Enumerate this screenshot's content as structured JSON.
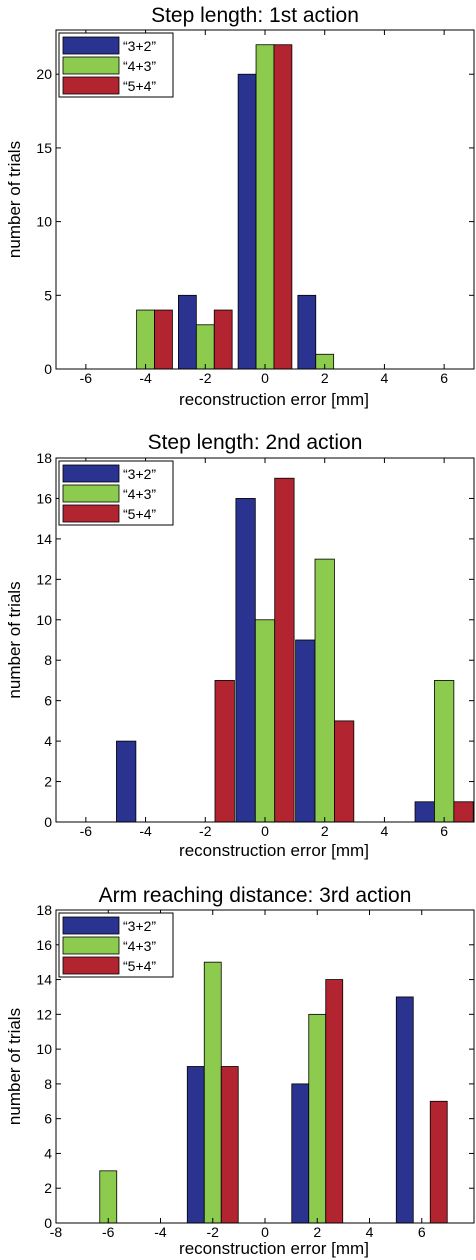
{
  "colors": {
    "series": [
      "#2B3390",
      "#8DCB4E",
      "#B22430"
    ],
    "axis": "#000000",
    "background": "#ffffff"
  },
  "chart_data": [
    {
      "type": "bar",
      "title": "Step length: 1st action",
      "xlabel": "reconstruction error [mm]",
      "ylabel": "number of trials",
      "xlim": [
        -7,
        7
      ],
      "ylim": [
        0,
        23
      ],
      "xticks": [
        -6,
        -4,
        -2,
        0,
        2,
        4,
        6
      ],
      "yticks": [
        0,
        5,
        10,
        15,
        20
      ],
      "grid": false,
      "legend_position": "top-left",
      "bar_group_centers": [
        -4,
        -2,
        0,
        2,
        4
      ],
      "series": [
        {
          "name": "“3+2”",
          "values": [
            0,
            5,
            20,
            5,
            0
          ]
        },
        {
          "name": "“4+3”",
          "values": [
            4,
            3,
            22,
            1,
            0
          ]
        },
        {
          "name": "“5+4”",
          "values": [
            4,
            4,
            22,
            0,
            0
          ]
        }
      ]
    },
    {
      "type": "bar",
      "title": "Step length: 2nd action",
      "xlabel": "reconstruction error [mm]",
      "ylabel": "number of trials",
      "xlim": [
        -7,
        7
      ],
      "ylim": [
        0,
        18
      ],
      "xticks": [
        -6,
        -4,
        -2,
        0,
        2,
        4,
        6
      ],
      "yticks": [
        0,
        2,
        4,
        6,
        8,
        10,
        12,
        14,
        16,
        18
      ],
      "grid": false,
      "legend_position": "top-left",
      "bar_group_centers": [
        -4,
        -2,
        0,
        2,
        4,
        6
      ],
      "series": [
        {
          "name": "“3+2”",
          "values": [
            4,
            0,
            16,
            9,
            0,
            1
          ]
        },
        {
          "name": "“4+3”",
          "values": [
            0,
            0,
            10,
            13,
            0,
            7
          ]
        },
        {
          "name": "“5+4”",
          "values": [
            0,
            7,
            17,
            5,
            0,
            1
          ]
        }
      ]
    },
    {
      "type": "bar",
      "title": "Arm reaching distance: 3rd action",
      "xlabel": "reconstruction error [mm]",
      "ylabel": "number of trials",
      "xlim": [
        -8,
        8
      ],
      "ylim": [
        0,
        18
      ],
      "xticks": [
        -8,
        -6,
        -4,
        -2,
        0,
        2,
        4,
        6
      ],
      "yticks": [
        0,
        2,
        4,
        6,
        8,
        10,
        12,
        14,
        16,
        18
      ],
      "grid": false,
      "legend_position": "top-left",
      "bar_group_centers": [
        -6,
        -4,
        -2,
        0,
        2,
        4,
        6,
        8
      ],
      "series": [
        {
          "name": "“3+2”",
          "values": [
            0,
            0,
            9,
            0,
            8,
            0,
            13,
            0
          ]
        },
        {
          "name": "“4+3”",
          "values": [
            3,
            0,
            15,
            0,
            12,
            0,
            0,
            0
          ]
        },
        {
          "name": "“5+4”",
          "values": [
            0,
            0,
            9,
            0,
            14,
            0,
            7,
            0
          ]
        }
      ]
    }
  ]
}
